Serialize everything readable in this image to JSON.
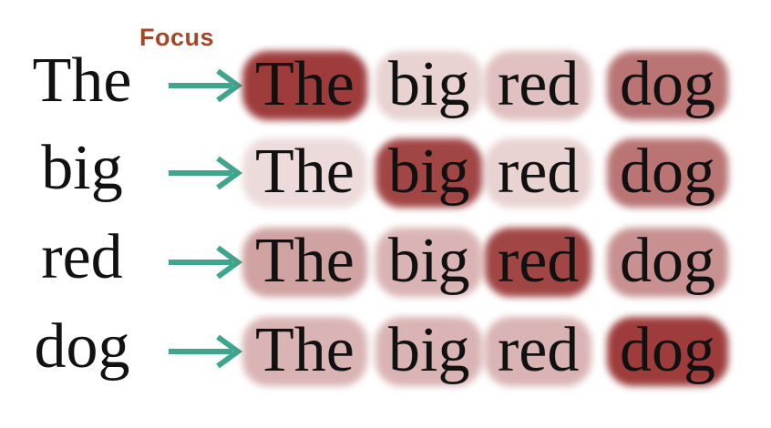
{
  "focus_label": "Focus",
  "arrow_color": "#3fa58c",
  "heat_color": "#8e1c1c",
  "sentence": [
    "The",
    "big",
    "red",
    "dog"
  ],
  "rows": [
    {
      "query": "The",
      "weights": [
        0.95,
        0.15,
        0.25,
        0.65
      ]
    },
    {
      "query": "big",
      "weights": [
        0.1,
        0.9,
        0.15,
        0.65
      ]
    },
    {
      "query": "red",
      "weights": [
        0.4,
        0.3,
        0.9,
        0.5
      ]
    },
    {
      "query": "dog",
      "weights": [
        0.3,
        0.3,
        0.3,
        0.95
      ]
    }
  ]
}
